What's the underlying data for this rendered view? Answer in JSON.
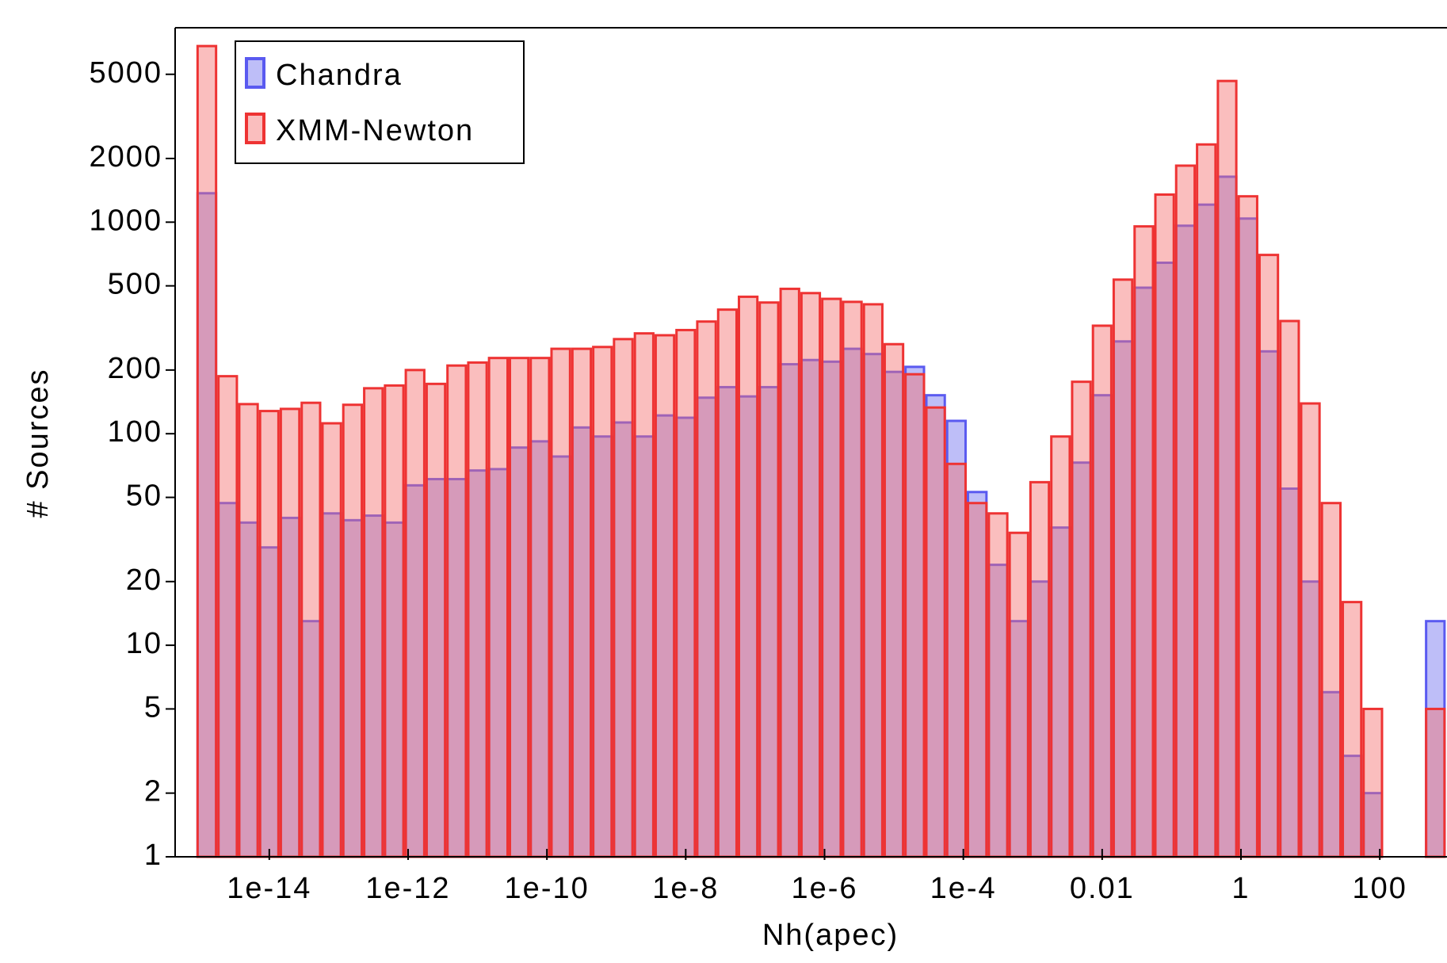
{
  "chart_data": {
    "type": "histogram",
    "x_label": "Nh(apec)",
    "y_label": "# Sources",
    "log_x": true,
    "log_y": true,
    "legend": "upper left",
    "xlim": [
      4.4e-16,
      930
    ],
    "ylim": [
      1,
      8300
    ],
    "xticks": [
      {
        "value": 1e-14,
        "label": "1e-14"
      },
      {
        "value": 1e-12,
        "label": "1e-12"
      },
      {
        "value": 1e-10,
        "label": "1e-10"
      },
      {
        "value": 1e-08,
        "label": "1e-8"
      },
      {
        "value": 1e-06,
        "label": "1e-6"
      },
      {
        "value": 0.0001,
        "label": "1e-4"
      },
      0.01,
      1,
      100
    ],
    "yticks": [
      1,
      2,
      5,
      10,
      20,
      50,
      100,
      200,
      500,
      1000,
      2000,
      5000
    ],
    "bins": [
      8.91e-16,
      1.78e-15,
      3.55e-15,
      7.08e-15,
      1.41e-14,
      2.82e-14,
      5.62e-14,
      1.12e-13,
      2.24e-13,
      4.47e-13,
      8.91e-13,
      1.78e-12,
      3.55e-12,
      7.08e-12,
      1.41e-11,
      2.82e-11,
      5.62e-11,
      1.12e-10,
      2.24e-10,
      4.47e-10,
      8.91e-10,
      1.78e-09,
      3.55e-09,
      7.08e-09,
      1.41e-08,
      2.82e-08,
      5.62e-08,
      1.12e-07,
      2.24e-07,
      4.47e-07,
      8.91e-07,
      1.78e-06,
      3.55e-06,
      7.08e-06,
      1.41e-05,
      2.82e-05,
      5.62e-05,
      0.000112,
      0.000224,
      0.000447,
      0.000891,
      0.00178,
      0.00355,
      0.00708,
      0.0141,
      0.0282,
      0.0562,
      0.112,
      0.224,
      0.447,
      0.891,
      1.78,
      3.55,
      7.08,
      14.1,
      28.2,
      56.2,
      112,
      224,
      447,
      891
    ],
    "series": [
      {
        "name": "Chandra",
        "color": "#5a5af0",
        "fill": "rgba(110,110,240,0.45)",
        "values": [
          1370,
          47,
          38,
          29,
          40,
          13,
          42,
          39,
          41,
          38,
          57,
          61,
          61,
          67,
          68,
          86,
          92,
          78,
          107,
          97,
          113,
          97,
          122,
          119,
          148,
          166,
          150,
          166,
          213,
          223,
          219,
          252,
          238,
          196,
          207,
          152,
          115,
          53,
          24,
          13,
          20,
          36,
          73,
          152,
          273,
          490,
          643,
          962,
          1210,
          1640,
          1040,
          245,
          55,
          20,
          6,
          3,
          2,
          0,
          0,
          13
        ]
      },
      {
        "name": "XMM-Newton",
        "color": "#ee3333",
        "fill": "rgba(245,110,110,0.45)",
        "values": [
          6800,
          187,
          138,
          128,
          131,
          140,
          112,
          137,
          164,
          169,
          200,
          172,
          210,
          217,
          228,
          228,
          228,
          252,
          252,
          257,
          280,
          298,
          292,
          309,
          339,
          386,
          444,
          417,
          484,
          462,
          434,
          420,
          409,
          265,
          191,
          133,
          72,
          47,
          42,
          34,
          59,
          97,
          176,
          324,
          535,
          955,
          1350,
          1850,
          2330,
          4650,
          1325,
          700,
          341,
          139,
          47,
          16,
          5,
          0,
          0,
          5
        ]
      }
    ]
  }
}
